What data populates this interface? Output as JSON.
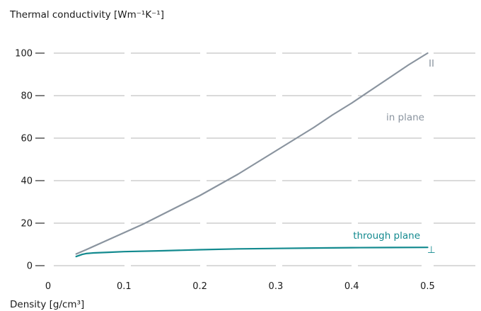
{
  "chart_data": {
    "type": "line",
    "ylabel": "Thermal conductivity [Wm⁻¹K⁻¹]",
    "xlabel": "Density [g/cm³]",
    "xlim": [
      0,
      0.55
    ],
    "ylim": [
      0,
      100
    ],
    "x_ticks": [
      "0",
      "0.1",
      "0.2",
      "0.3",
      "0.4",
      "0.5"
    ],
    "y_ticks": [
      "0",
      "20",
      "40",
      "60",
      "80",
      "100"
    ],
    "grid": "horizontal-dashed",
    "colors": {
      "in_plane": "#8a949f",
      "through_plane": "#138a8f",
      "grid": "#b5b5b5",
      "text": "#1a1a1a"
    },
    "series": [
      {
        "name": "in plane",
        "symbol": "II",
        "x": [
          0.037,
          0.05,
          0.075,
          0.1,
          0.125,
          0.15,
          0.175,
          0.2,
          0.225,
          0.25,
          0.275,
          0.3,
          0.325,
          0.35,
          0.375,
          0.4,
          0.425,
          0.45,
          0.475,
          0.5
        ],
        "y": [
          5.5,
          7.5,
          11.5,
          15.5,
          19.5,
          24,
          28.5,
          33,
          38,
          43,
          48.5,
          54,
          59.5,
          65,
          71,
          76.5,
          82.5,
          88.5,
          94.5,
          100
        ]
      },
      {
        "name": "through plane",
        "symbol": "⊥",
        "x": [
          0.037,
          0.045,
          0.05,
          0.06,
          0.08,
          0.1,
          0.15,
          0.2,
          0.25,
          0.3,
          0.35,
          0.4,
          0.45,
          0.5
        ],
        "y": [
          4.3,
          5.3,
          5.7,
          6.0,
          6.3,
          6.6,
          7.0,
          7.5,
          7.9,
          8.1,
          8.3,
          8.45,
          8.55,
          8.6
        ]
      }
    ]
  }
}
